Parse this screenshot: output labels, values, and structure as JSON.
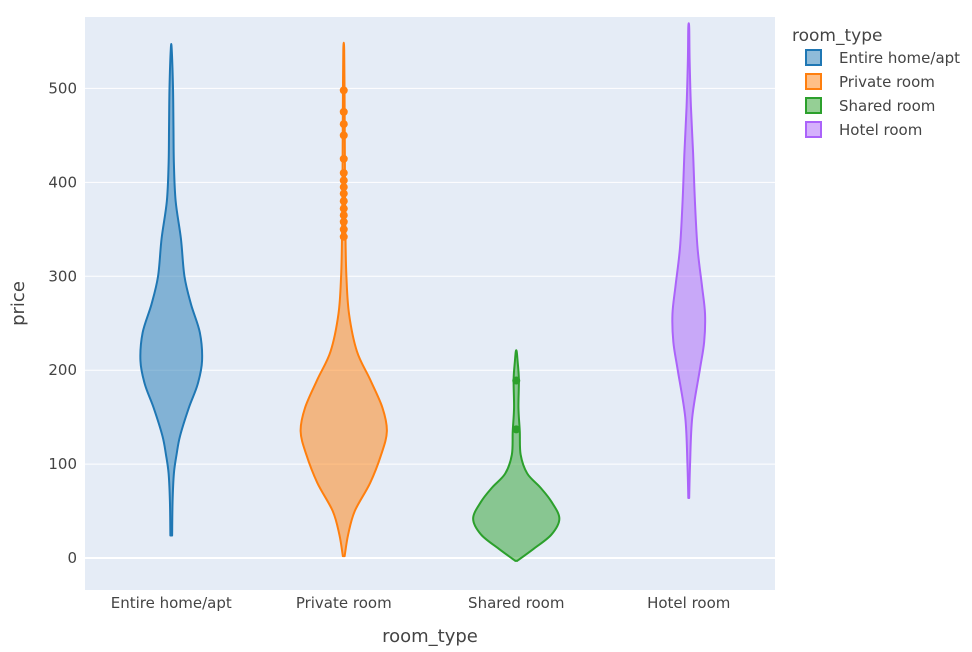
{
  "chart_data": {
    "type": "violin",
    "title": "",
    "xlabel": "room_type",
    "ylabel": "price",
    "ylim": [
      -34,
      576
    ],
    "yticks": [
      0,
      100,
      200,
      300,
      400,
      500
    ],
    "categories": [
      "Entire home/apt",
      "Private room",
      "Shared room",
      "Hotel room"
    ],
    "legend": {
      "title": "room_type",
      "placement": "top-right"
    },
    "grid": true,
    "plot_bg": "#e5ecf6",
    "series": [
      {
        "name": "Entire home/apt",
        "color": "#1f77b4",
        "min": 24,
        "max": 542,
        "density": [
          [
            24,
            0.02
          ],
          [
            60,
            0.03
          ],
          [
            90,
            0.06
          ],
          [
            110,
            0.12
          ],
          [
            130,
            0.2
          ],
          [
            160,
            0.4
          ],
          [
            185,
            0.6
          ],
          [
            210,
            0.7
          ],
          [
            240,
            0.65
          ],
          [
            270,
            0.45
          ],
          [
            300,
            0.3
          ],
          [
            340,
            0.22
          ],
          [
            380,
            0.1
          ],
          [
            420,
            0.06
          ],
          [
            460,
            0.05
          ],
          [
            500,
            0.04
          ],
          [
            542,
            0.01
          ]
        ],
        "outliers": []
      },
      {
        "name": "Private room",
        "color": "#ff7f0e",
        "min": 2,
        "max": 541,
        "density": [
          [
            2,
            0.02
          ],
          [
            25,
            0.1
          ],
          [
            50,
            0.25
          ],
          [
            80,
            0.6
          ],
          [
            110,
            0.85
          ],
          [
            135,
            0.98
          ],
          [
            160,
            0.88
          ],
          [
            190,
            0.6
          ],
          [
            220,
            0.3
          ],
          [
            260,
            0.12
          ],
          [
            300,
            0.06
          ],
          [
            340,
            0.04
          ],
          [
            380,
            0.03
          ],
          [
            430,
            0.025
          ],
          [
            480,
            0.02
          ],
          [
            541,
            0.01
          ]
        ],
        "outliers": [
          498,
          475,
          462,
          450,
          425,
          410,
          402,
          395,
          388,
          380,
          372,
          365,
          358,
          350,
          342
        ]
      },
      {
        "name": "Shared room",
        "color": "#2ca02c",
        "min": -3,
        "max": 220,
        "density": [
          [
            -3,
            0.02
          ],
          [
            10,
            0.4
          ],
          [
            25,
            0.8
          ],
          [
            42,
            0.98
          ],
          [
            60,
            0.8
          ],
          [
            75,
            0.55
          ],
          [
            90,
            0.25
          ],
          [
            110,
            0.1
          ],
          [
            135,
            0.08
          ],
          [
            160,
            0.05
          ],
          [
            190,
            0.06
          ],
          [
            210,
            0.03
          ],
          [
            220,
            0.01
          ]
        ],
        "outliers": [
          189,
          137
        ]
      },
      {
        "name": "Hotel room",
        "color": "#ab63fa",
        "min": 64,
        "max": 565,
        "density": [
          [
            64,
            0.01
          ],
          [
            100,
            0.03
          ],
          [
            150,
            0.08
          ],
          [
            200,
            0.25
          ],
          [
            230,
            0.35
          ],
          [
            260,
            0.37
          ],
          [
            290,
            0.3
          ],
          [
            330,
            0.2
          ],
          [
            380,
            0.14
          ],
          [
            430,
            0.1
          ],
          [
            480,
            0.05
          ],
          [
            530,
            0.02
          ],
          [
            565,
            0.01
          ]
        ],
        "outliers": []
      }
    ]
  }
}
